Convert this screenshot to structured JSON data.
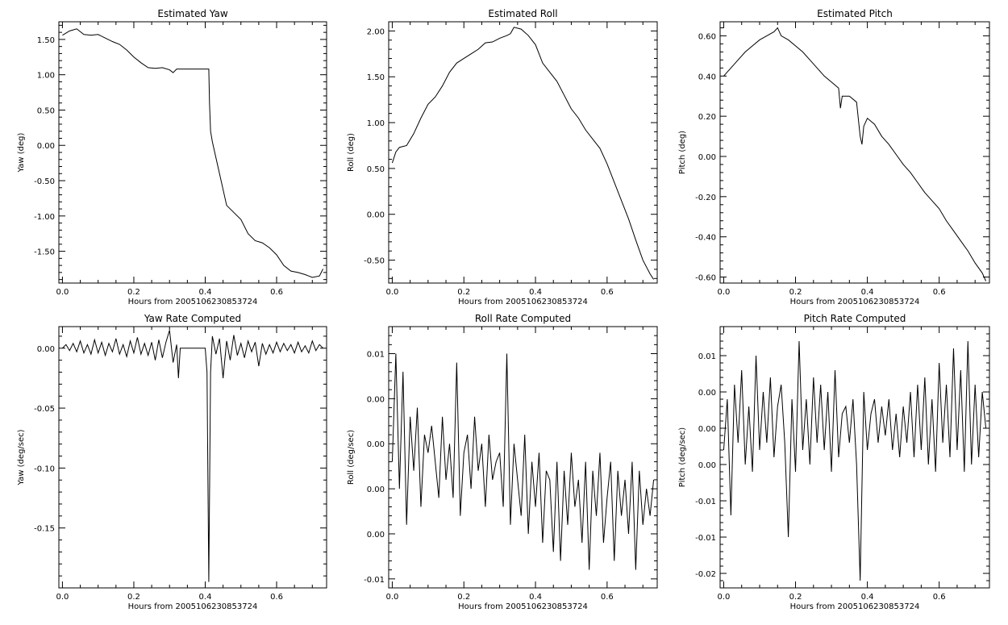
{
  "chart_data": [
    {
      "type": "line",
      "title": "Estimated Yaw",
      "xlabel": "Hours from 2005106230853724",
      "ylabel": "Yaw (deg)",
      "xlim": [
        -0.01,
        0.74
      ],
      "ylim": [
        -1.95,
        1.75
      ],
      "xticks": [
        0,
        0.2,
        0.4,
        0.6
      ],
      "xtick_labels": [
        "0.0",
        "0.2",
        "0.4",
        "0.6"
      ],
      "yticks": [
        1.5,
        1.0,
        0.5,
        0.0,
        -0.5,
        -1.0,
        -1.5
      ],
      "ytick_labels": [
        "1.50",
        "1.00",
        "0.50",
        "0.00",
        "-0.50",
        "-1.00",
        "-1.50"
      ],
      "series": [
        {
          "x": [
            0.0,
            0.02,
            0.04,
            0.06,
            0.08,
            0.1,
            0.12,
            0.14,
            0.16,
            0.18,
            0.2,
            0.22,
            0.24,
            0.26,
            0.28,
            0.3,
            0.31,
            0.32,
            0.35,
            0.38,
            0.41,
            0.412,
            0.415,
            0.42,
            0.44,
            0.46,
            0.48,
            0.5,
            0.52,
            0.54,
            0.56,
            0.58,
            0.6,
            0.62,
            0.64,
            0.66,
            0.68,
            0.7,
            0.72,
            0.73
          ],
          "y": [
            1.56,
            1.62,
            1.65,
            1.57,
            1.56,
            1.57,
            1.52,
            1.47,
            1.43,
            1.35,
            1.25,
            1.17,
            1.1,
            1.09,
            1.1,
            1.07,
            1.03,
            1.08,
            1.08,
            1.08,
            1.08,
            0.6,
            0.2,
            0.05,
            -0.4,
            -0.85,
            -0.95,
            -1.05,
            -1.25,
            -1.35,
            -1.38,
            -1.45,
            -1.55,
            -1.7,
            -1.78,
            -1.8,
            -1.83,
            -1.87,
            -1.85,
            -1.75
          ]
        }
      ]
    },
    {
      "type": "line",
      "title": "Estimated Roll",
      "xlabel": "Hours from 2005106230853724",
      "ylabel": "Roll (deg)",
      "xlim": [
        -0.01,
        0.74
      ],
      "ylim": [
        -0.75,
        2.1
      ],
      "xticks": [
        0,
        0.2,
        0.4,
        0.6
      ],
      "xtick_labels": [
        "0.0",
        "0.2",
        "0.4",
        "0.6"
      ],
      "yticks": [
        2.0,
        1.5,
        1.0,
        0.5,
        0.0,
        -0.5
      ],
      "ytick_labels": [
        "2.00",
        "1.50",
        "1.00",
        "0.50",
        "0.00",
        "-0.50"
      ],
      "series": [
        {
          "x": [
            0.0,
            0.01,
            0.02,
            0.04,
            0.06,
            0.08,
            0.1,
            0.12,
            0.14,
            0.16,
            0.18,
            0.2,
            0.22,
            0.24,
            0.26,
            0.28,
            0.3,
            0.32,
            0.33,
            0.34,
            0.36,
            0.38,
            0.4,
            0.42,
            0.44,
            0.46,
            0.48,
            0.5,
            0.52,
            0.54,
            0.56,
            0.58,
            0.6,
            0.62,
            0.64,
            0.66,
            0.68,
            0.7,
            0.72,
            0.73
          ],
          "y": [
            0.56,
            0.68,
            0.73,
            0.75,
            0.88,
            1.05,
            1.2,
            1.28,
            1.4,
            1.55,
            1.65,
            1.7,
            1.75,
            1.8,
            1.87,
            1.88,
            1.92,
            1.95,
            1.97,
            2.04,
            2.02,
            1.95,
            1.85,
            1.65,
            1.55,
            1.45,
            1.3,
            1.15,
            1.05,
            0.92,
            0.82,
            0.72,
            0.55,
            0.35,
            0.15,
            -0.05,
            -0.28,
            -0.5,
            -0.65,
            -0.71
          ]
        }
      ]
    },
    {
      "type": "line",
      "title": "Estimated Pitch",
      "xlabel": "Hours from 2005106230853724",
      "ylabel": "Pitch (deg)",
      "xlim": [
        -0.01,
        0.74
      ],
      "ylim": [
        -0.63,
        0.67
      ],
      "xticks": [
        0,
        0.2,
        0.4,
        0.6
      ],
      "xtick_labels": [
        "0.0",
        "0.2",
        "0.4",
        "0.6"
      ],
      "yticks": [
        0.6,
        0.4,
        0.2,
        0.0,
        -0.2,
        -0.4,
        -0.6
      ],
      "ytick_labels": [
        "0.60",
        "0.40",
        "0.20",
        "0.00",
        "-0.20",
        "-0.40",
        "-0.60"
      ],
      "series": [
        {
          "x": [
            0.0,
            0.02,
            0.04,
            0.06,
            0.08,
            0.1,
            0.12,
            0.14,
            0.15,
            0.16,
            0.18,
            0.2,
            0.22,
            0.24,
            0.26,
            0.28,
            0.3,
            0.32,
            0.325,
            0.33,
            0.35,
            0.37,
            0.38,
            0.385,
            0.39,
            0.4,
            0.42,
            0.44,
            0.46,
            0.48,
            0.5,
            0.52,
            0.54,
            0.56,
            0.58,
            0.6,
            0.62,
            0.64,
            0.66,
            0.68,
            0.7,
            0.72,
            0.73
          ],
          "y": [
            0.4,
            0.44,
            0.48,
            0.52,
            0.55,
            0.58,
            0.6,
            0.62,
            0.64,
            0.6,
            0.58,
            0.55,
            0.52,
            0.48,
            0.44,
            0.4,
            0.37,
            0.34,
            0.24,
            0.3,
            0.3,
            0.27,
            0.1,
            0.06,
            0.15,
            0.19,
            0.16,
            0.1,
            0.06,
            0.01,
            -0.04,
            -0.08,
            -0.13,
            -0.18,
            -0.22,
            -0.26,
            -0.32,
            -0.37,
            -0.42,
            -0.47,
            -0.53,
            -0.58,
            -0.62
          ]
        }
      ]
    },
    {
      "type": "line",
      "title": "Yaw Rate Computed",
      "xlabel": "Hours from 2005106230853724",
      "ylabel": "Yaw (deg/sec)",
      "xlim": [
        -0.01,
        0.74
      ],
      "ylim": [
        -0.2,
        0.018
      ],
      "xticks": [
        0,
        0.2,
        0.4,
        0.6
      ],
      "xtick_labels": [
        "0.0",
        "0.2",
        "0.4",
        "0.6"
      ],
      "yticks": [
        0.0,
        -0.05,
        -0.1,
        -0.15
      ],
      "ytick_labels": [
        "0.00",
        "-0.05",
        "-0.10",
        "-0.15"
      ],
      "series": [
        {
          "x": [
            0.0,
            0.01,
            0.02,
            0.03,
            0.04,
            0.05,
            0.06,
            0.07,
            0.08,
            0.09,
            0.1,
            0.11,
            0.12,
            0.13,
            0.14,
            0.15,
            0.16,
            0.17,
            0.18,
            0.19,
            0.2,
            0.21,
            0.22,
            0.23,
            0.24,
            0.25,
            0.26,
            0.27,
            0.28,
            0.29,
            0.3,
            0.31,
            0.32,
            0.325,
            0.33,
            0.4,
            0.405,
            0.41,
            0.415,
            0.42,
            0.43,
            0.44,
            0.45,
            0.46,
            0.47,
            0.48,
            0.49,
            0.5,
            0.51,
            0.52,
            0.53,
            0.54,
            0.55,
            0.56,
            0.57,
            0.58,
            0.59,
            0.6,
            0.61,
            0.62,
            0.63,
            0.64,
            0.65,
            0.66,
            0.67,
            0.68,
            0.69,
            0.7,
            0.71,
            0.72,
            0.73
          ],
          "y": [
            0.0,
            0.003,
            -0.002,
            0.004,
            -0.003,
            0.006,
            -0.004,
            0.003,
            -0.005,
            0.007,
            -0.004,
            0.005,
            -0.006,
            0.004,
            -0.003,
            0.008,
            -0.005,
            0.003,
            -0.007,
            0.006,
            -0.004,
            0.009,
            -0.005,
            0.004,
            -0.006,
            0.005,
            -0.01,
            0.007,
            -0.008,
            0.005,
            0.015,
            -0.012,
            0.003,
            -0.025,
            0.0,
            0.0,
            -0.02,
            -0.195,
            -0.02,
            0.01,
            -0.005,
            0.008,
            -0.025,
            0.006,
            -0.01,
            0.011,
            -0.006,
            0.004,
            -0.008,
            0.006,
            -0.003,
            0.005,
            -0.015,
            0.004,
            -0.005,
            0.003,
            -0.004,
            0.005,
            -0.003,
            0.004,
            -0.002,
            0.003,
            -0.004,
            0.005,
            -0.003,
            0.002,
            -0.004,
            0.006,
            -0.002,
            0.003,
            0.0
          ]
        }
      ]
    },
    {
      "type": "line",
      "title": "Roll Rate Computed",
      "xlabel": "Hours from 2005106230853724",
      "ylabel": "Roll (deg/sec)",
      "xlim": [
        -0.01,
        0.74
      ],
      "ylim": [
        -0.011,
        0.018
      ],
      "xticks": [
        0,
        0.2,
        0.4,
        0.6
      ],
      "xtick_labels": [
        "0.0",
        "0.2",
        "0.4",
        "0.6"
      ],
      "yticks": [
        0.015,
        0.01,
        0.005,
        0.0,
        -0.005,
        -0.01
      ],
      "ytick_labels": [
        "0.01",
        "0.00",
        "0.00",
        "0.00",
        "0.00",
        "-0.01"
      ],
      "series": [
        {
          "x": [
            0.0,
            0.01,
            0.02,
            0.03,
            0.04,
            0.05,
            0.06,
            0.07,
            0.08,
            0.09,
            0.1,
            0.11,
            0.12,
            0.13,
            0.14,
            0.15,
            0.16,
            0.17,
            0.18,
            0.19,
            0.2,
            0.21,
            0.22,
            0.23,
            0.24,
            0.25,
            0.26,
            0.27,
            0.28,
            0.29,
            0.3,
            0.31,
            0.32,
            0.33,
            0.34,
            0.35,
            0.36,
            0.37,
            0.38,
            0.39,
            0.4,
            0.41,
            0.42,
            0.43,
            0.44,
            0.45,
            0.46,
            0.47,
            0.48,
            0.49,
            0.5,
            0.51,
            0.52,
            0.53,
            0.54,
            0.55,
            0.56,
            0.57,
            0.58,
            0.59,
            0.6,
            0.61,
            0.62,
            0.63,
            0.64,
            0.65,
            0.66,
            0.67,
            0.68,
            0.69,
            0.7,
            0.71,
            0.72,
            0.73
          ],
          "y": [
            0.003,
            0.015,
            0.0,
            0.013,
            -0.004,
            0.008,
            0.002,
            0.009,
            -0.002,
            0.006,
            0.004,
            0.007,
            0.003,
            -0.001,
            0.008,
            0.001,
            0.005,
            -0.001,
            0.014,
            -0.003,
            0.004,
            0.006,
            0.0,
            0.008,
            0.002,
            0.005,
            -0.002,
            0.006,
            0.001,
            0.003,
            0.004,
            -0.002,
            0.015,
            -0.004,
            0.005,
            0.001,
            -0.003,
            0.006,
            -0.005,
            0.003,
            -0.002,
            0.004,
            -0.006,
            0.002,
            0.001,
            -0.007,
            0.003,
            -0.008,
            0.002,
            -0.004,
            0.004,
            -0.002,
            0.001,
            -0.006,
            0.003,
            -0.009,
            0.002,
            -0.003,
            0.004,
            -0.006,
            -0.001,
            0.003,
            -0.008,
            0.002,
            -0.003,
            0.001,
            -0.005,
            0.003,
            -0.009,
            0.002,
            -0.004,
            0.0,
            -0.003,
            0.001
          ]
        }
      ]
    },
    {
      "type": "line",
      "title": "Pitch Rate Computed",
      "xlabel": "Hours from 2005106230853724",
      "ylabel": "Pitch (deg/sec)",
      "xlim": [
        -0.01,
        0.74
      ],
      "ylim": [
        -0.022,
        0.014
      ],
      "xticks": [
        0,
        0.2,
        0.4,
        0.6
      ],
      "xtick_labels": [
        "0.0",
        "0.2",
        "0.4",
        "0.6"
      ],
      "yticks": [
        0.01,
        0.005,
        0.0,
        -0.005,
        -0.01,
        -0.015,
        -0.02
      ],
      "ytick_labels": [
        "0.01",
        "0.00",
        "0.00",
        "0.00",
        "-0.01",
        "-0.01",
        "-0.02"
      ],
      "series": [
        {
          "x": [
            0.0,
            0.01,
            0.02,
            0.03,
            0.04,
            0.05,
            0.06,
            0.07,
            0.08,
            0.09,
            0.1,
            0.11,
            0.12,
            0.13,
            0.14,
            0.15,
            0.16,
            0.17,
            0.18,
            0.19,
            0.2,
            0.21,
            0.22,
            0.23,
            0.24,
            0.25,
            0.26,
            0.27,
            0.28,
            0.29,
            0.3,
            0.31,
            0.32,
            0.33,
            0.34,
            0.35,
            0.36,
            0.37,
            0.38,
            0.39,
            0.4,
            0.41,
            0.42,
            0.43,
            0.44,
            0.45,
            0.46,
            0.47,
            0.48,
            0.49,
            0.5,
            0.51,
            0.52,
            0.53,
            0.54,
            0.55,
            0.56,
            0.57,
            0.58,
            0.59,
            0.6,
            0.61,
            0.62,
            0.63,
            0.64,
            0.65,
            0.66,
            0.67,
            0.68,
            0.69,
            0.7,
            0.71,
            0.72,
            0.73
          ],
          "y": [
            -0.003,
            0.004,
            -0.012,
            0.006,
            -0.002,
            0.008,
            -0.005,
            0.003,
            -0.006,
            0.01,
            -0.003,
            0.005,
            -0.002,
            0.007,
            -0.004,
            0.003,
            0.006,
            -0.002,
            -0.015,
            0.004,
            -0.006,
            0.012,
            -0.003,
            0.004,
            -0.005,
            0.007,
            -0.002,
            0.006,
            -0.003,
            0.005,
            -0.006,
            0.008,
            -0.004,
            0.002,
            0.003,
            -0.002,
            0.004,
            -0.005,
            -0.021,
            0.005,
            -0.003,
            0.002,
            0.004,
            -0.002,
            0.003,
            -0.001,
            0.004,
            -0.003,
            0.002,
            -0.004,
            0.003,
            -0.002,
            0.005,
            -0.004,
            0.006,
            -0.003,
            0.007,
            -0.005,
            0.004,
            -0.006,
            0.009,
            -0.002,
            0.006,
            -0.004,
            0.011,
            -0.003,
            0.008,
            -0.006,
            0.012,
            -0.005,
            0.006,
            -0.004,
            0.005,
            0.0
          ]
        }
      ]
    }
  ]
}
